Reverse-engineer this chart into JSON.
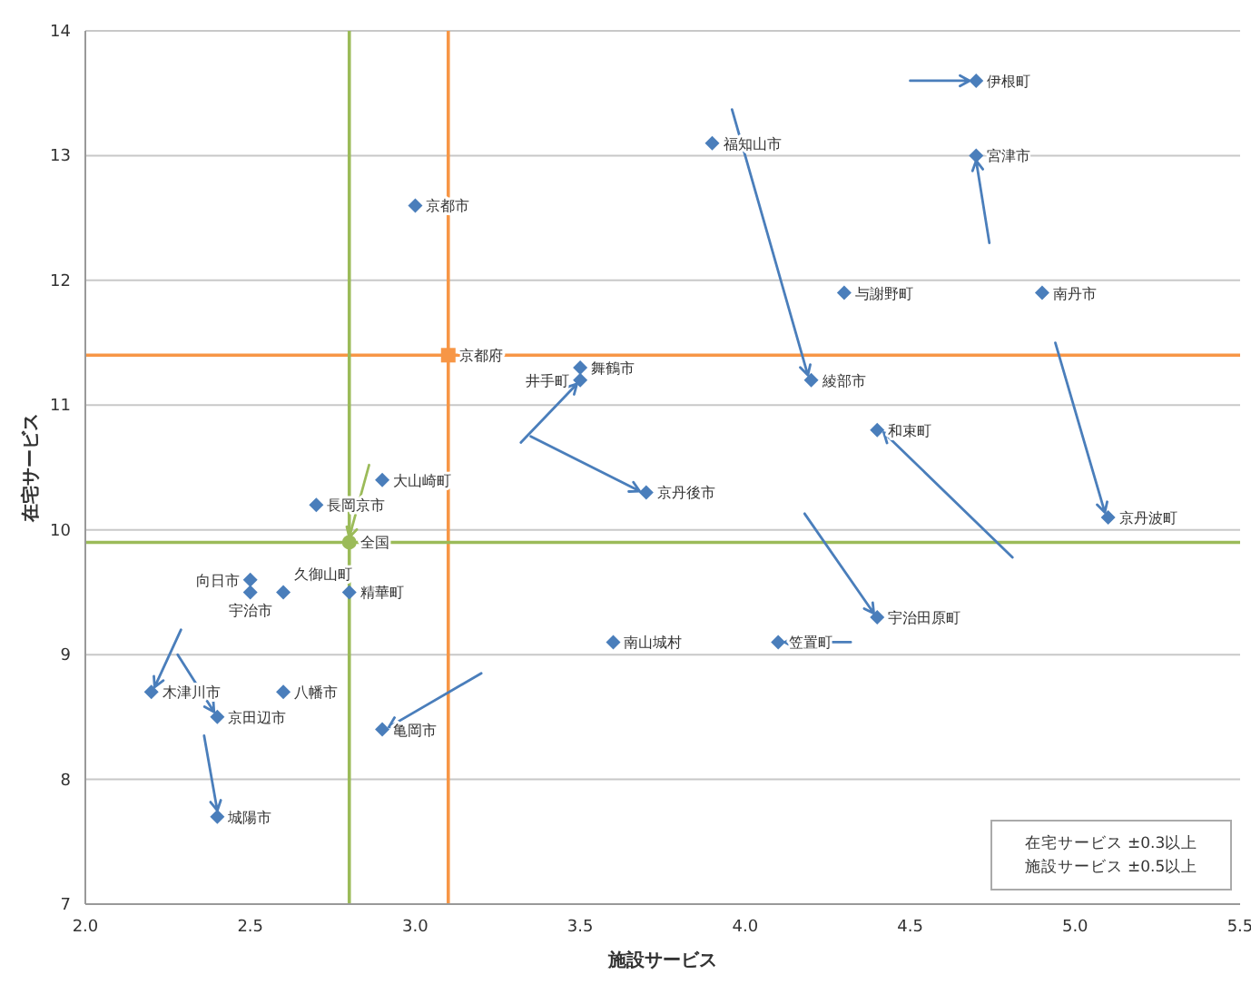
{
  "chart_data": {
    "type": "scatter",
    "xlabel": "施設サービス",
    "ylabel": "在宅サービス",
    "xlim": [
      2.0,
      5.5
    ],
    "xticks": [
      {
        "value": 2.0,
        "label": "2.0"
      },
      {
        "value": 2.5,
        "label": "2.5"
      },
      {
        "value": 3.0,
        "label": "3.0"
      },
      {
        "value": 3.5,
        "label": "3.5"
      },
      {
        "value": 4.0,
        "label": "4.0"
      },
      {
        "value": 4.5,
        "label": "4.5"
      },
      {
        "value": 5.0,
        "label": "5.0"
      },
      {
        "value": 5.5,
        "label": "5.5"
      }
    ],
    "ylim": [
      7,
      14
    ],
    "yticks": [
      7,
      8,
      9,
      10,
      11,
      12,
      13,
      14
    ],
    "grid": "y",
    "marker": "diamond",
    "series": [
      {
        "color": "#4a7ebb",
        "x": [
          4.7,
          3.9,
          4.7,
          3.0,
          4.3,
          4.9,
          3.5,
          3.5,
          4.2,
          4.4,
          3.7,
          5.1,
          2.9,
          2.7,
          2.5,
          2.5,
          2.6,
          2.8,
          4.4,
          4.1,
          3.6,
          2.2,
          2.6,
          2.4,
          2.9,
          2.4
        ],
        "values": [
          13.6,
          13.1,
          13.0,
          12.6,
          11.9,
          11.9,
          11.3,
          11.2,
          11.2,
          10.8,
          10.3,
          10.1,
          10.4,
          10.2,
          9.6,
          9.5,
          9.5,
          9.5,
          9.3,
          9.1,
          9.1,
          8.7,
          8.7,
          8.5,
          8.4,
          7.7
        ]
      },
      {
        "color": "#f79646",
        "marker": "square",
        "x": [
          3.1
        ],
        "values": [
          11.4
        ]
      },
      {
        "color": "#9bbb59",
        "marker": "circle",
        "x": [
          2.8
        ],
        "values": [
          9.9
        ]
      }
    ],
    "ref_lines": [
      {
        "axis": "x",
        "value": 3.1,
        "color": "#f79646"
      },
      {
        "axis": "y",
        "value": 11.4,
        "color": "#f79646"
      },
      {
        "axis": "x",
        "value": 2.8,
        "color": "#9bbb59"
      },
      {
        "axis": "y",
        "value": 9.9,
        "color": "#9bbb59"
      }
    ],
    "annotations": [
      {
        "text": "伊根町",
        "x": 4.7,
        "y": 13.6
      },
      {
        "text": "福知山市",
        "x": 3.9,
        "y": 13.1
      },
      {
        "text": "宮津市",
        "x": 4.7,
        "y": 13.0
      },
      {
        "text": "京都市",
        "x": 3.0,
        "y": 12.6
      },
      {
        "text": "与謝野町",
        "x": 4.3,
        "y": 11.9
      },
      {
        "text": "南丹市",
        "x": 4.9,
        "y": 11.9
      },
      {
        "text": "舞鶴市",
        "x": 3.5,
        "y": 11.3
      },
      {
        "text": "井手町",
        "x": 3.5,
        "y": 11.2
      },
      {
        "text": "綾部市",
        "x": 4.2,
        "y": 11.2
      },
      {
        "text": "和束町",
        "x": 4.4,
        "y": 10.8
      },
      {
        "text": "京丹後市",
        "x": 3.7,
        "y": 10.3
      },
      {
        "text": "京丹波町",
        "x": 5.1,
        "y": 10.1
      },
      {
        "text": "大山崎町",
        "x": 2.9,
        "y": 10.4
      },
      {
        "text": "長岡京市",
        "x": 2.7,
        "y": 10.2
      },
      {
        "text": "向日市",
        "x": 2.5,
        "y": 9.6
      },
      {
        "text": "宇治市",
        "x": 2.5,
        "y": 9.5
      },
      {
        "text": "久御山町",
        "x": 2.6,
        "y": 9.5
      },
      {
        "text": "精華町",
        "x": 2.8,
        "y": 9.5
      },
      {
        "text": "宇治田原町",
        "x": 4.4,
        "y": 9.3
      },
      {
        "text": "笠置町",
        "x": 4.1,
        "y": 9.1
      },
      {
        "text": "南山城村",
        "x": 3.6,
        "y": 9.1
      },
      {
        "text": "木津川市",
        "x": 2.2,
        "y": 8.7
      },
      {
        "text": "八幡市",
        "x": 2.6,
        "y": 8.7
      },
      {
        "text": "京田辺市",
        "x": 2.4,
        "y": 8.5
      },
      {
        "text": "亀岡市",
        "x": 2.9,
        "y": 8.4
      },
      {
        "text": "城陽市",
        "x": 2.4,
        "y": 7.7
      },
      {
        "text": "京都府",
        "x": 3.1,
        "y": 11.4
      },
      {
        "text": "全国",
        "x": 2.8,
        "y": 9.9
      },
      "在宅サービス ±0.3以上",
      "施設サービス ±0.5以上"
    ]
  }
}
